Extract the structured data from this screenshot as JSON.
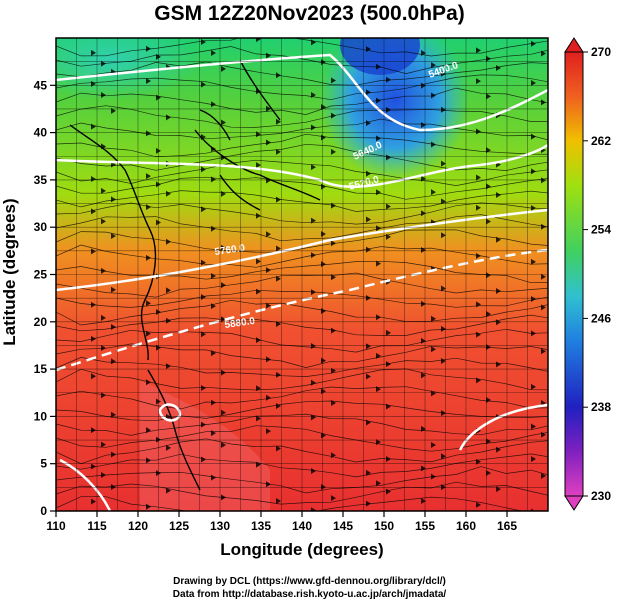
{
  "title": "GSM 12Z20Nov2023 (500.0hPa)",
  "credits": {
    "line1": "Drawing by DCL (https://www.gfd-dennou.org/library/dcl/)",
    "line2": "Data from http://database.rish.kyoto-u.ac.jp/arch/jmadata/"
  },
  "chart_data": {
    "type": "heatmap",
    "title": "GSM 12Z20Nov2023 (500.0hPa)",
    "xlabel": "Longitude (degrees)",
    "ylabel": "Latitude  (degrees)",
    "xlim": [
      110,
      170
    ],
    "ylim": [
      0,
      50
    ],
    "x_ticks": [
      110,
      115,
      120,
      125,
      130,
      135,
      140,
      145,
      150,
      155,
      160,
      165
    ],
    "y_ticks": [
      0,
      5,
      10,
      15,
      20,
      25,
      30,
      35,
      40,
      45
    ],
    "grid": true,
    "colorbar": {
      "range": [
        230,
        270
      ],
      "ticks": [
        230,
        238,
        246,
        254,
        262,
        270
      ],
      "colors": [
        "#e040c0",
        "#2020c0",
        "#2070e0",
        "#30c0e0",
        "#40d060",
        "#90e020",
        "#f0c000",
        "#f06020",
        "#e02020"
      ]
    },
    "contour_labels": [
      "5400.0",
      "5520.0",
      "5640.0",
      "5760.0",
      "5880.0"
    ],
    "field_description": "temperature (K) shaded, geopotential height contours, wind streamlines"
  }
}
